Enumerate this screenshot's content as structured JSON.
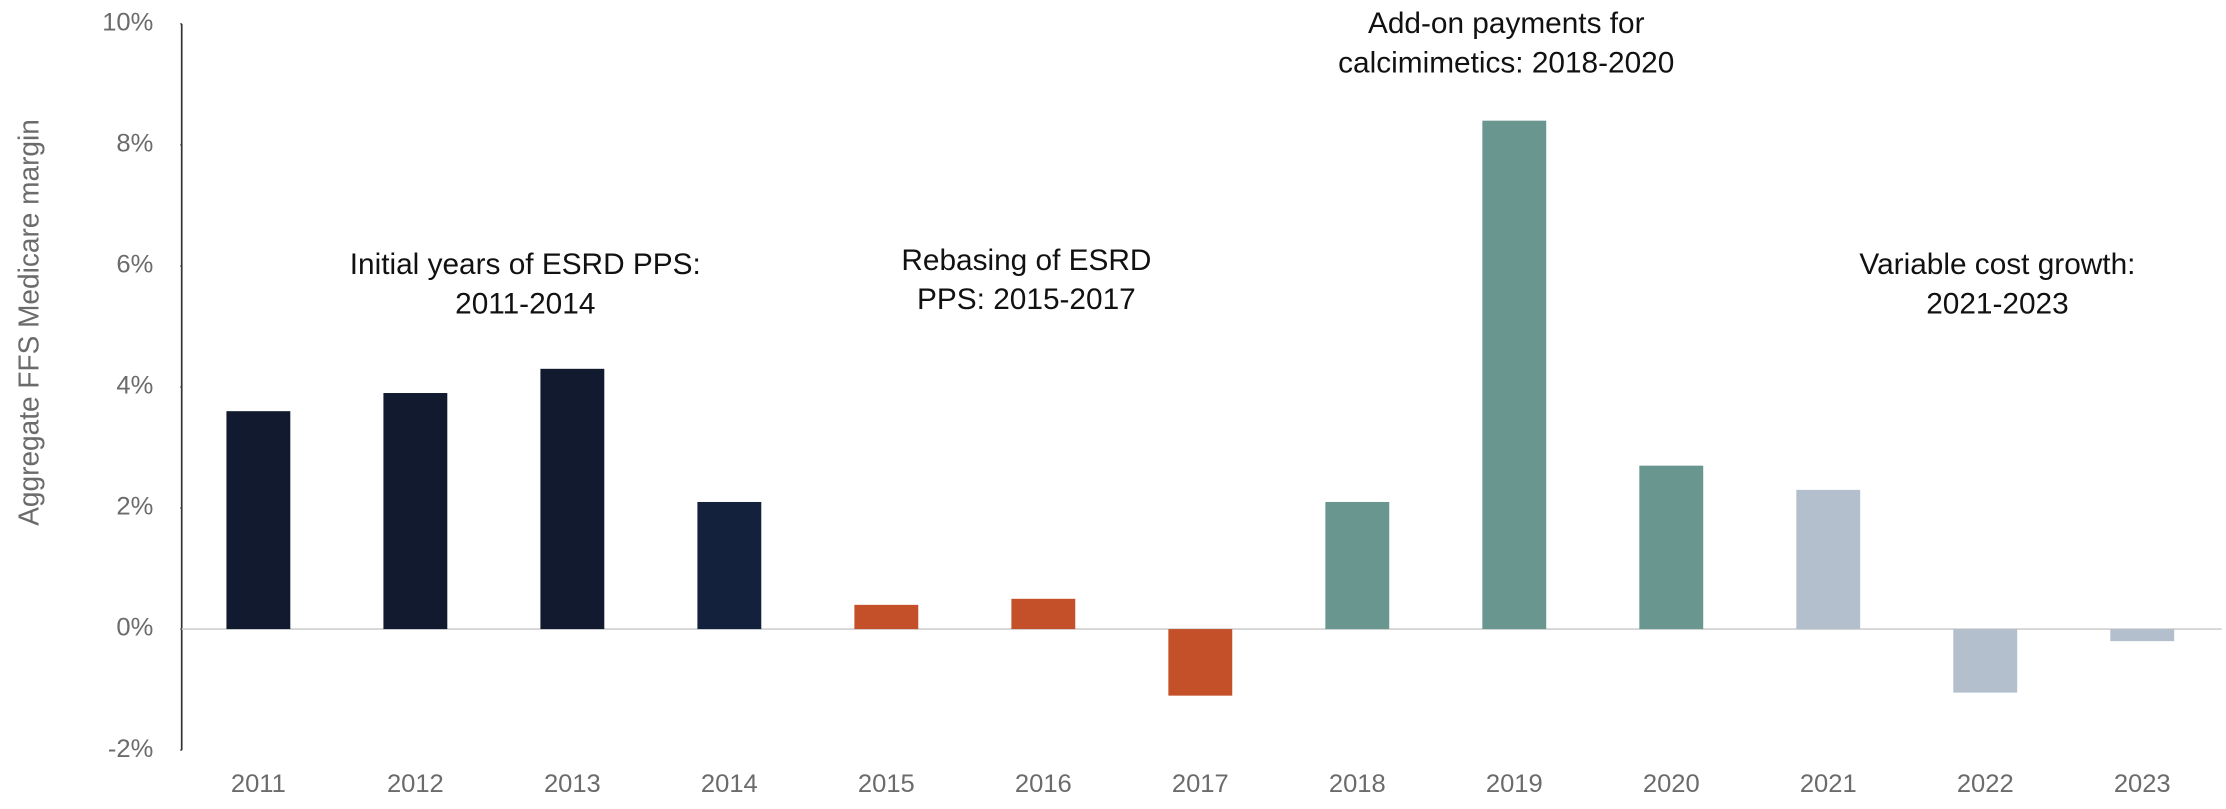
{
  "chart_data": {
    "type": "bar",
    "y_label": "Aggregate FFS Medicare margin",
    "categories": [
      "2011",
      "2012",
      "2013",
      "2014",
      "2015",
      "2016",
      "2017",
      "2018",
      "2019",
      "2020",
      "2021",
      "2022",
      "2023"
    ],
    "values": [
      3.6,
      3.9,
      4.3,
      2.1,
      0.4,
      0.5,
      -1.1,
      2.1,
      8.4,
      2.7,
      2.3,
      -1.05,
      -0.2
    ],
    "colors": [
      "#111a2e",
      "#111a2e",
      "#111a2e",
      "#13213d",
      "#c4502a",
      "#c4502a",
      "#c4502a",
      "#6a9690",
      "#6a9690",
      "#6a9690",
      "#b3bfcc",
      "#b3bfcc",
      "#b3bfcc"
    ],
    "ylim": [
      -2,
      10
    ],
    "yticks": [
      {
        "value": -2,
        "label": "-2%"
      },
      {
        "value": 0,
        "label": "0%"
      },
      {
        "value": 2,
        "label": "2%"
      },
      {
        "value": 4,
        "label": "4%"
      },
      {
        "value": 6,
        "label": "6%"
      },
      {
        "value": 8,
        "label": "8%"
      },
      {
        "value": 10,
        "label": "10%"
      }
    ],
    "annotations": [
      {
        "lines": [
          "Initial years of ESRD PPS:",
          "2011-2014"
        ]
      },
      {
        "lines": [
          "Rebasing of ESRD",
          "PPS: 2015-2017"
        ]
      },
      {
        "lines": [
          "Add-on payments for",
          "calcimimetics: 2018-2020"
        ]
      },
      {
        "lines": [
          "Variable cost growth:",
          "2021-2023"
        ]
      }
    ]
  }
}
